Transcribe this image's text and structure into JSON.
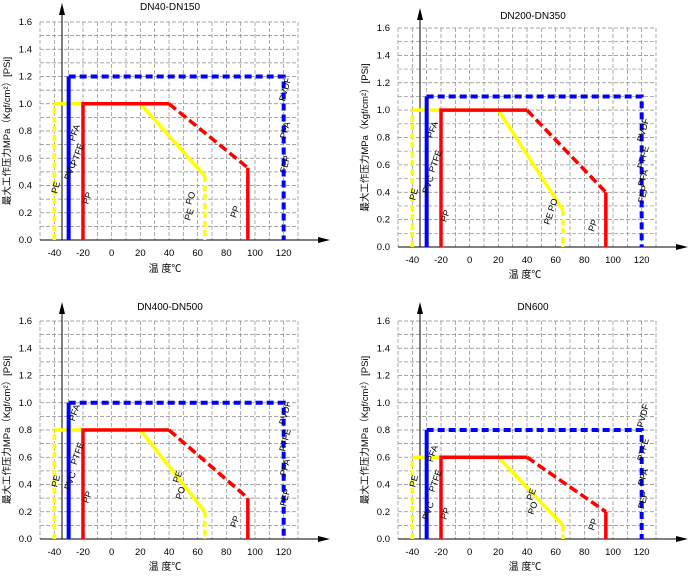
{
  "chart_data": [
    {
      "type": "line",
      "title": "DN40-DN150",
      "xlabel": "温  度℃",
      "ylabel": "最大工作压力MPa（Kgf/cm²）[PSi]",
      "xticks": [
        -40,
        -20,
        0,
        20,
        40,
        60,
        80,
        100,
        120
      ],
      "yticks": [
        0.0,
        0.2,
        0.4,
        0.6,
        0.8,
        1.0,
        1.2,
        1.4,
        1.6
      ],
      "xlim": [
        -50,
        130
      ],
      "ylim": [
        0,
        1.6
      ],
      "grid": true,
      "series": [
        {
          "name": "PE",
          "color": "#ffff00",
          "points": [
            [
              -40,
              0
            ],
            [
              -40,
              1.0
            ],
            [
              20,
              1.0
            ],
            [
              65,
              0.47
            ],
            [
              65,
              0
            ]
          ]
        },
        {
          "name": "PP",
          "color": "#ff0000",
          "points": [
            [
              -20,
              0
            ],
            [
              -20,
              1.0
            ],
            [
              40,
              1.0
            ],
            [
              95,
              0.53
            ],
            [
              95,
              0
            ]
          ]
        },
        {
          "name": "PVC",
          "color": "#0000ff",
          "points": [
            [
              -30,
              0
            ],
            [
              -30,
              1.2
            ],
            [
              120,
              1.2
            ],
            [
              120,
              0
            ]
          ]
        },
        {
          "name": "PVDF",
          "color": "#0000ff",
          "points": [
            [
              -30,
              0
            ],
            [
              -30,
              1.2
            ],
            [
              120,
              1.2
            ],
            [
              120,
              0
            ]
          ]
        }
      ],
      "labels": {
        "pe_low": "PE",
        "pvc": "PVC",
        "pfa": "PFA",
        "ptfe": "PTFE",
        "pp_low": "PP",
        "pe_mid": "PE",
        "po": "PO",
        "pp_mid": "PP",
        "pvdf": "PVDF",
        "pfa_r": "PFA",
        "fep": "FEP"
      }
    },
    {
      "type": "line",
      "title": "DN200-DN350",
      "xlabel": "温  度℃",
      "ylabel": "最大工作压力MPa（Kgf/cm²）[PSi]",
      "xticks": [
        -40,
        -20,
        0,
        20,
        40,
        60,
        80,
        100,
        120
      ],
      "yticks": [
        0.0,
        0.2,
        0.4,
        0.6,
        0.8,
        1.0,
        1.2,
        1.4,
        1.6
      ],
      "xlim": [
        -50,
        130
      ],
      "ylim": [
        0,
        1.6
      ],
      "grid": true,
      "series": [
        {
          "name": "PE",
          "color": "#ffff00",
          "points": [
            [
              -40,
              0
            ],
            [
              -40,
              1.0
            ],
            [
              20,
              1.0
            ],
            [
              65,
              0.27
            ],
            [
              65,
              0
            ]
          ]
        },
        {
          "name": "PP",
          "color": "#ff0000",
          "points": [
            [
              -20,
              0
            ],
            [
              -20,
              1.0
            ],
            [
              40,
              1.0
            ],
            [
              95,
              0.4
            ],
            [
              95,
              0
            ]
          ]
        },
        {
          "name": "PVC",
          "color": "#0000ff",
          "points": [
            [
              -30,
              0
            ],
            [
              -30,
              1.1
            ],
            [
              120,
              1.1
            ],
            [
              120,
              0
            ]
          ]
        },
        {
          "name": "PVDF",
          "color": "#0000ff",
          "points": [
            [
              -30,
              0
            ],
            [
              -30,
              1.1
            ],
            [
              120,
              1.1
            ],
            [
              120,
              0
            ]
          ]
        }
      ],
      "labels": {
        "pe_low": "PE",
        "pvc": "PVC",
        "pfa": "PFA",
        "ptfe": "PTFE",
        "pp_low": "PP",
        "pe_mid": "PE",
        "po": "PO",
        "pp_mid": "PP",
        "pvdf": "PVDF",
        "pfa_r": "PFA",
        "fep": "FEP",
        "ptfe_r": "PTFE"
      }
    },
    {
      "type": "line",
      "title": "DN400-DN500",
      "xlabel": "温  度℃",
      "ylabel": "最大工作压力MPa（Kgf/cm²）[PSi]",
      "xticks": [
        -40,
        -20,
        0,
        20,
        40,
        60,
        80,
        100,
        120
      ],
      "yticks": [
        0.0,
        0.2,
        0.4,
        0.6,
        0.8,
        1.0,
        1.2,
        1.4,
        1.6
      ],
      "xlim": [
        -50,
        130
      ],
      "ylim": [
        0,
        1.6
      ],
      "grid": true,
      "series": [
        {
          "name": "PE",
          "color": "#ffff00",
          "points": [
            [
              -40,
              0
            ],
            [
              -40,
              0.8
            ],
            [
              20,
              0.8
            ],
            [
              65,
              0.2
            ],
            [
              65,
              0
            ]
          ]
        },
        {
          "name": "PP",
          "color": "#ff0000",
          "points": [
            [
              -20,
              0
            ],
            [
              -20,
              0.8
            ],
            [
              40,
              0.8
            ],
            [
              95,
              0.3
            ],
            [
              95,
              0
            ]
          ]
        },
        {
          "name": "PVC",
          "color": "#0000ff",
          "points": [
            [
              -30,
              0
            ],
            [
              -30,
              1.0
            ],
            [
              120,
              1.0
            ],
            [
              120,
              0
            ]
          ]
        },
        {
          "name": "PVDF",
          "color": "#0000ff",
          "points": [
            [
              -30,
              0
            ],
            [
              -30,
              1.0
            ],
            [
              120,
              1.0
            ],
            [
              120,
              0
            ]
          ]
        }
      ],
      "labels": {
        "pe_low": "PE",
        "pvc": "PVC",
        "pfa": "PFA",
        "ptfe": "PTFE",
        "pp_low": "PP",
        "pe_mid": "PE",
        "po": "PO",
        "pp_mid": "PP",
        "pvdf": "PVDF",
        "pfa_r": "PFA",
        "fep": "FEP",
        "ptfe_r": "PTFE"
      }
    },
    {
      "type": "line",
      "title": "DN600",
      "xlabel": "温  度℃",
      "ylabel": "最大工作压力MPa（Kgf/cm²）[PSi]",
      "xticks": [
        -40,
        -20,
        0,
        20,
        40,
        60,
        80,
        100,
        120
      ],
      "yticks": [
        0.0,
        0.2,
        0.4,
        0.6,
        0.8,
        1.0,
        1.2,
        1.4,
        1.6
      ],
      "xlim": [
        -50,
        130
      ],
      "ylim": [
        0,
        1.6
      ],
      "grid": true,
      "series": [
        {
          "name": "PE",
          "color": "#ffff00",
          "points": [
            [
              -40,
              0
            ],
            [
              -40,
              0.6
            ],
            [
              20,
              0.6
            ],
            [
              65,
              0.1
            ],
            [
              65,
              0
            ]
          ]
        },
        {
          "name": "PP",
          "color": "#ff0000",
          "points": [
            [
              -20,
              0
            ],
            [
              -20,
              0.6
            ],
            [
              40,
              0.6
            ],
            [
              95,
              0.2
            ],
            [
              95,
              0
            ]
          ]
        },
        {
          "name": "PVC",
          "color": "#0000ff",
          "points": [
            [
              -30,
              0
            ],
            [
              -30,
              0.8
            ],
            [
              120,
              0.8
            ],
            [
              120,
              0
            ]
          ]
        },
        {
          "name": "PVDF",
          "color": "#0000ff",
          "points": [
            [
              -30,
              0
            ],
            [
              -30,
              0.8
            ],
            [
              120,
              0.8
            ],
            [
              120,
              0
            ]
          ]
        }
      ],
      "labels": {
        "pe_low": "PE",
        "pvc": "PVC",
        "pfa": "PFA",
        "ptfe": "PTFE",
        "pp_low": "PP",
        "pe_mid": "PE",
        "po": "PO",
        "pp_mid": "PP",
        "pvdf": "PVDF",
        "pfa_r": "PFA",
        "fep": "FEP",
        "ptfe_r": "PTFE"
      }
    }
  ]
}
